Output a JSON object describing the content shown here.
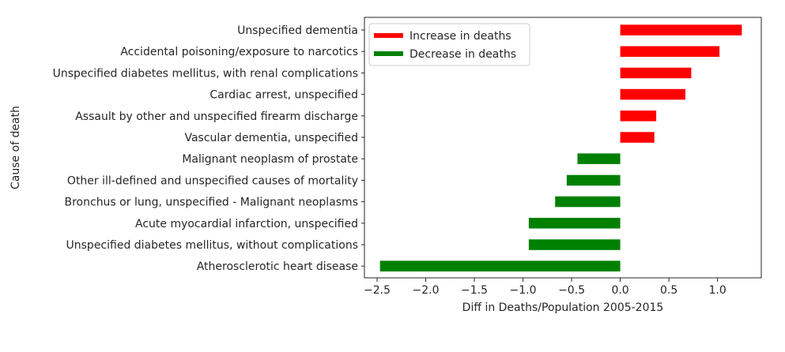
{
  "chart_data": {
    "type": "bar",
    "orientation": "horizontal",
    "title": "",
    "xlabel": "Diff in Deaths/Population 2005-2015",
    "ylabel": "Cause of death",
    "xlim": [
      -2.63,
      1.45
    ],
    "xticks": [
      -2.5,
      -2.0,
      -1.5,
      -1.0,
      -0.5,
      0.0,
      0.5,
      1.0
    ],
    "xtick_labels": [
      "−2.5",
      "−2.0",
      "−1.5",
      "−1.0",
      "−0.5",
      "0.0",
      "0.5",
      "1.0"
    ],
    "grid": false,
    "legend_position": "upper-left",
    "legend": [
      {
        "label": "Increase in deaths",
        "color": "#ff0000"
      },
      {
        "label": "Decrease in deaths",
        "color": "#008000"
      }
    ],
    "categories": [
      "Unspecified dementia",
      "Accidental poisoning/exposure to narcotics",
      "Unspecified diabetes mellitus, with renal complications",
      "Cardiac arrest, unspecified",
      "Assault by other and unspecified firearm discharge",
      "Vascular dementia, unspecified",
      "Malignant neoplasm of prostate",
      "Other ill-defined and unspecified causes of mortality",
      "Bronchus or lung, unspecified - Malignant neoplasms",
      "Acute myocardial infarction, unspecified",
      "Unspecified diabetes mellitus, without complications",
      "Atherosclerotic heart disease"
    ],
    "values": [
      1.25,
      1.02,
      0.73,
      0.67,
      0.37,
      0.35,
      -0.44,
      -0.55,
      -0.67,
      -0.94,
      -0.94,
      -2.47
    ],
    "colors": {
      "positive": "#ff0000",
      "negative": "#008000",
      "axis": "#262626"
    }
  }
}
